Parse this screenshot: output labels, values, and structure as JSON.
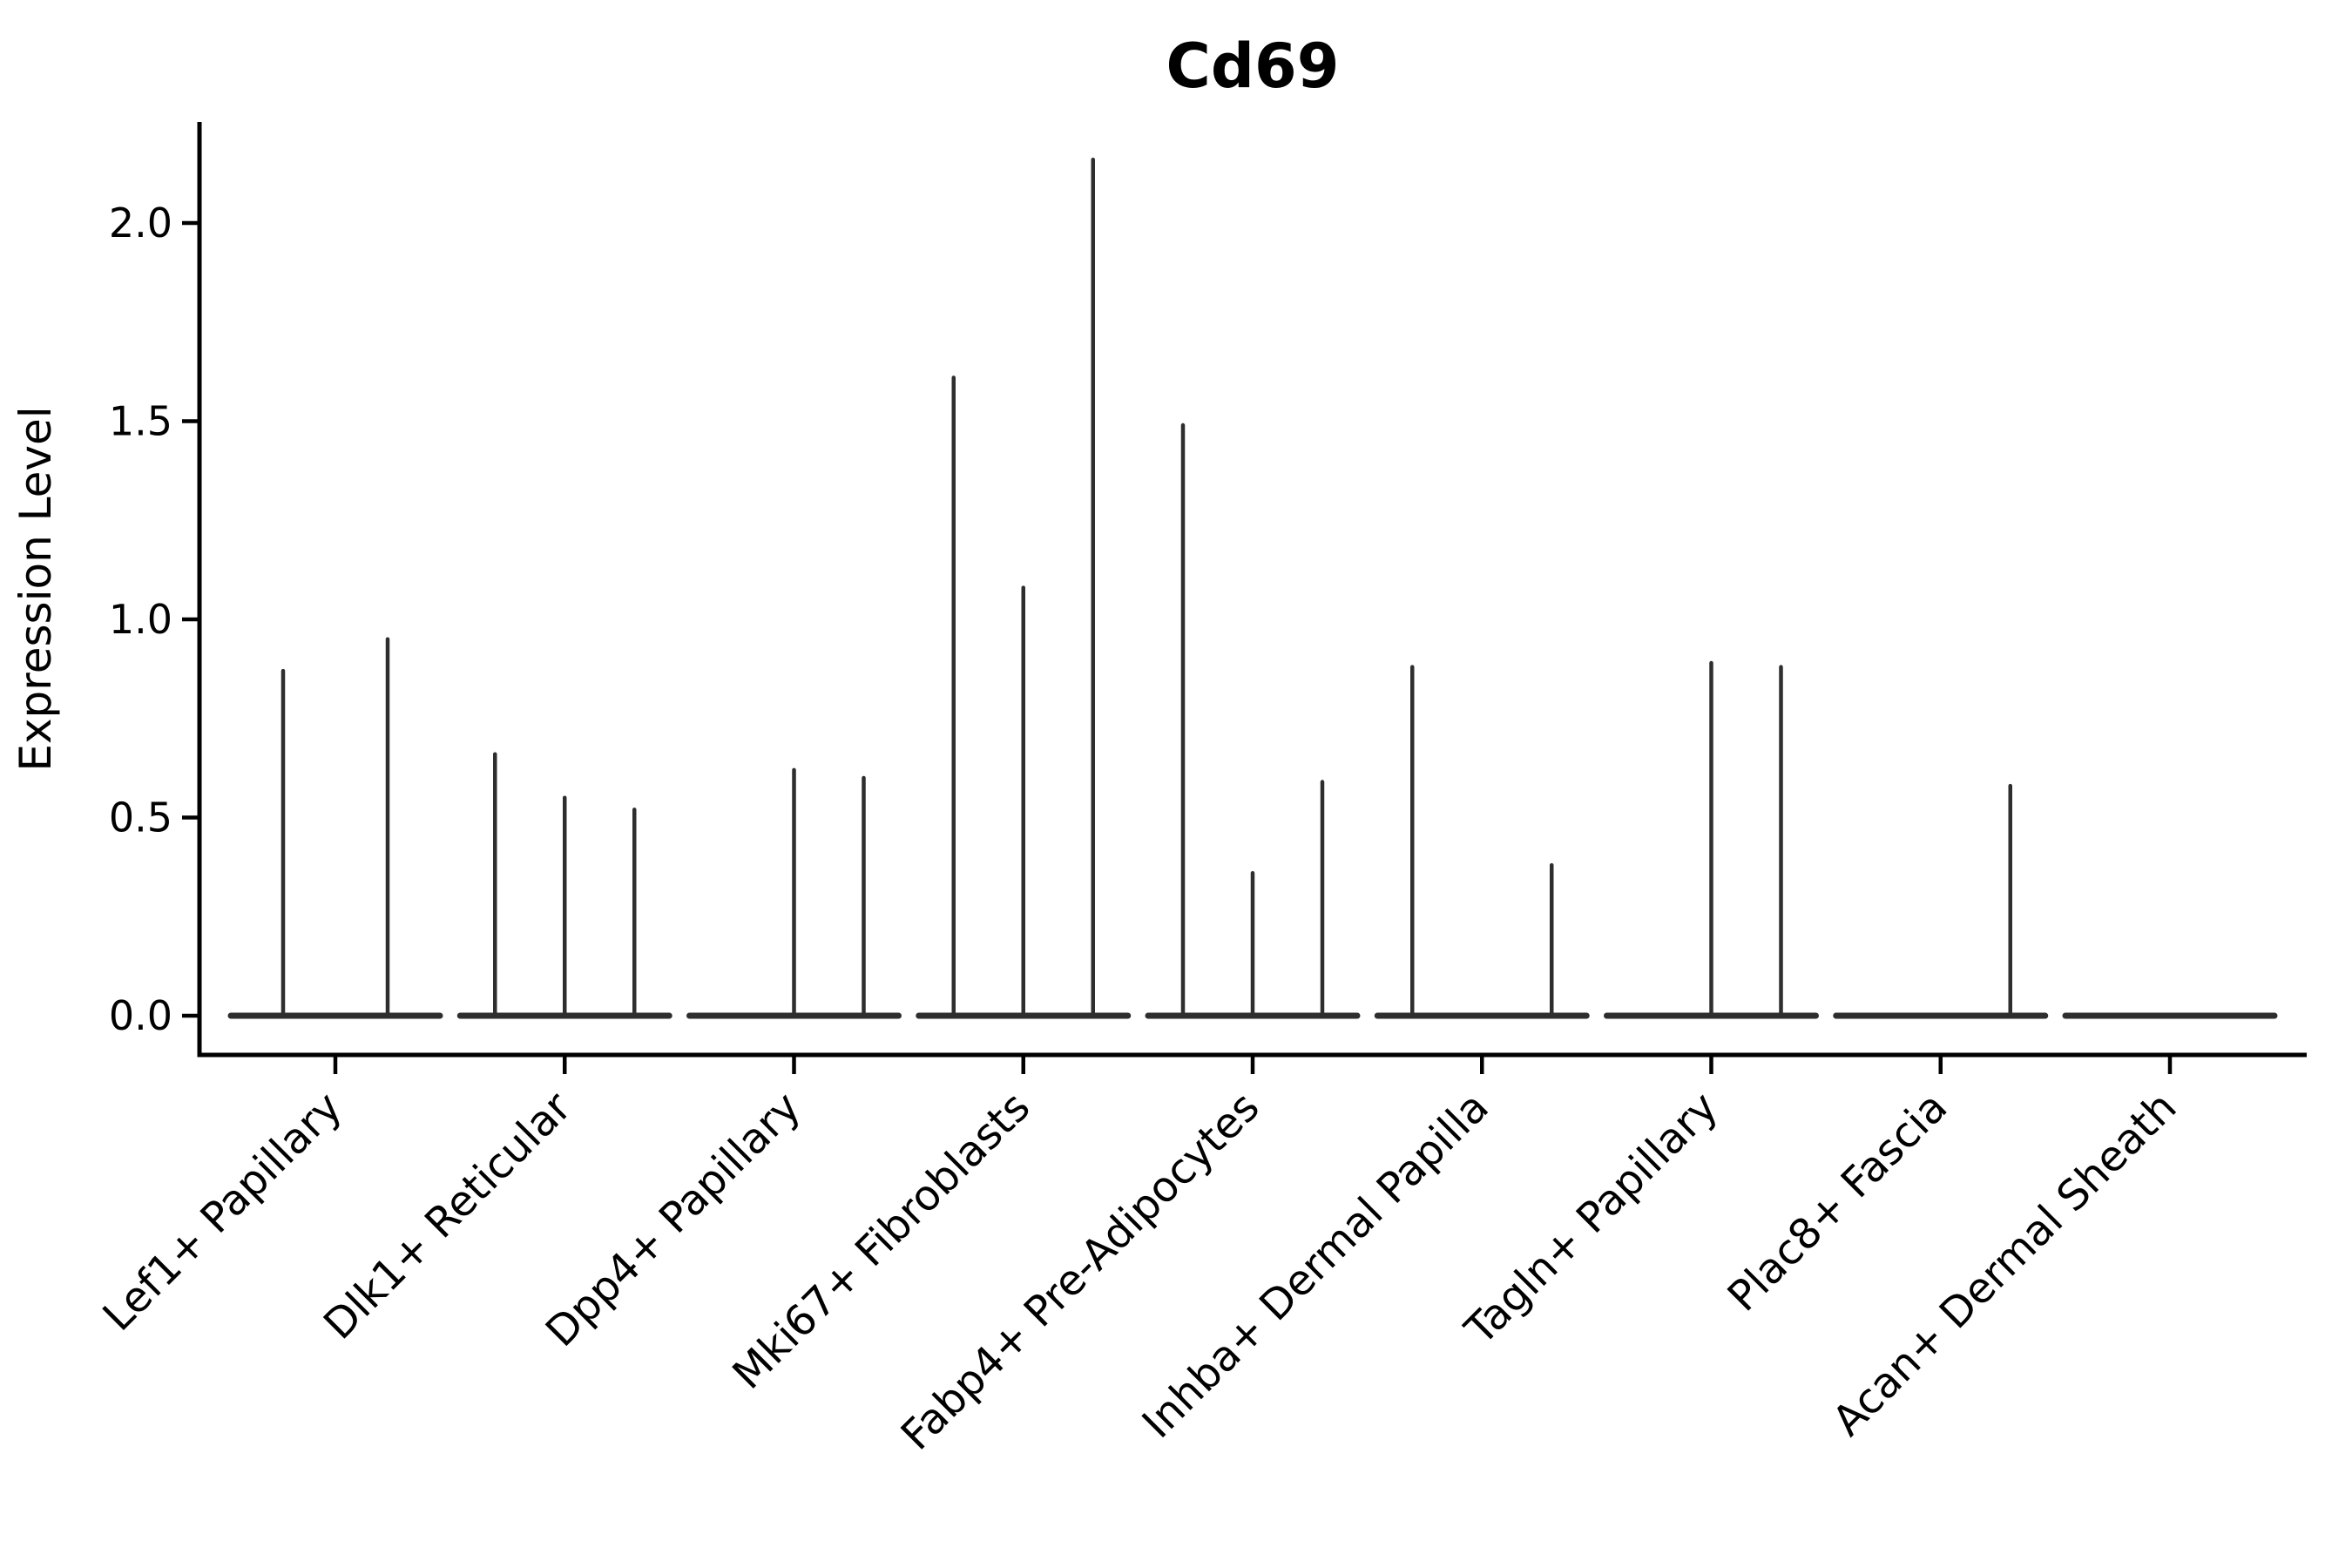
{
  "colors": {
    "background": "#ffffff",
    "axis": "#000000",
    "text": "#000000",
    "violin_line": "#2e2e2e"
  },
  "chart_data": {
    "type": "violin",
    "title": "Cd69",
    "xlabel": "",
    "ylabel": "Expression Level",
    "ylim": [
      -0.1,
      2.25
    ],
    "grid": false,
    "legend": "none",
    "ytick_values": [
      0.0,
      0.5,
      1.0,
      1.5,
      2.0
    ],
    "ytick_labels": [
      "0.0",
      "0.5",
      "1.0",
      "1.5",
      "2.0"
    ],
    "description": "Violin plot of Cd69 expression per fibroblast cluster; nearly all density sits at 0 (flat wide base per violin) with thin spikes rising to each violin's maximum expression value. Several clusters contain 2-3 side-by-side violins.",
    "categories": [
      "Lef1+ Papillary",
      "Dlk1+ Reticular",
      "Dpp4+ Papillary",
      "Mki67+ Fibroblasts",
      "Fabp4+ Pre-Adipocytes",
      "Inhba+ Dermal Papilla",
      "Tagln+ Papillary",
      "Plac8+ Fascia",
      "Acan+ Dermal Sheath"
    ],
    "groups": [
      {
        "label": "Lef1+ Papillary",
        "violin_max_expression": [
          0.87,
          0.95
        ]
      },
      {
        "label": "Dlk1+ Reticular",
        "violin_max_expression": [
          0.66,
          0.55,
          0.52
        ]
      },
      {
        "label": "Dpp4+ Papillary",
        "violin_max_expression": [
          0,
          0.62,
          0.6
        ]
      },
      {
        "label": "Mki67+ Fibroblasts",
        "violin_max_expression": [
          1.61,
          1.08,
          2.16
        ]
      },
      {
        "label": "Fabp4+ Pre-Adipocytes",
        "violin_max_expression": [
          1.49,
          0.36,
          0.59
        ]
      },
      {
        "label": "Inhba+ Dermal Papilla",
        "violin_max_expression": [
          0.88,
          0,
          0.38
        ]
      },
      {
        "label": "Tagln+ Papillary",
        "violin_max_expression": [
          0,
          0.89,
          0.88
        ]
      },
      {
        "label": "Plac8+ Fascia",
        "violin_max_expression": [
          0,
          0,
          0.58
        ]
      },
      {
        "label": "Acan+ Dermal Sheath",
        "violin_max_expression": [
          0,
          0,
          0
        ]
      }
    ]
  }
}
